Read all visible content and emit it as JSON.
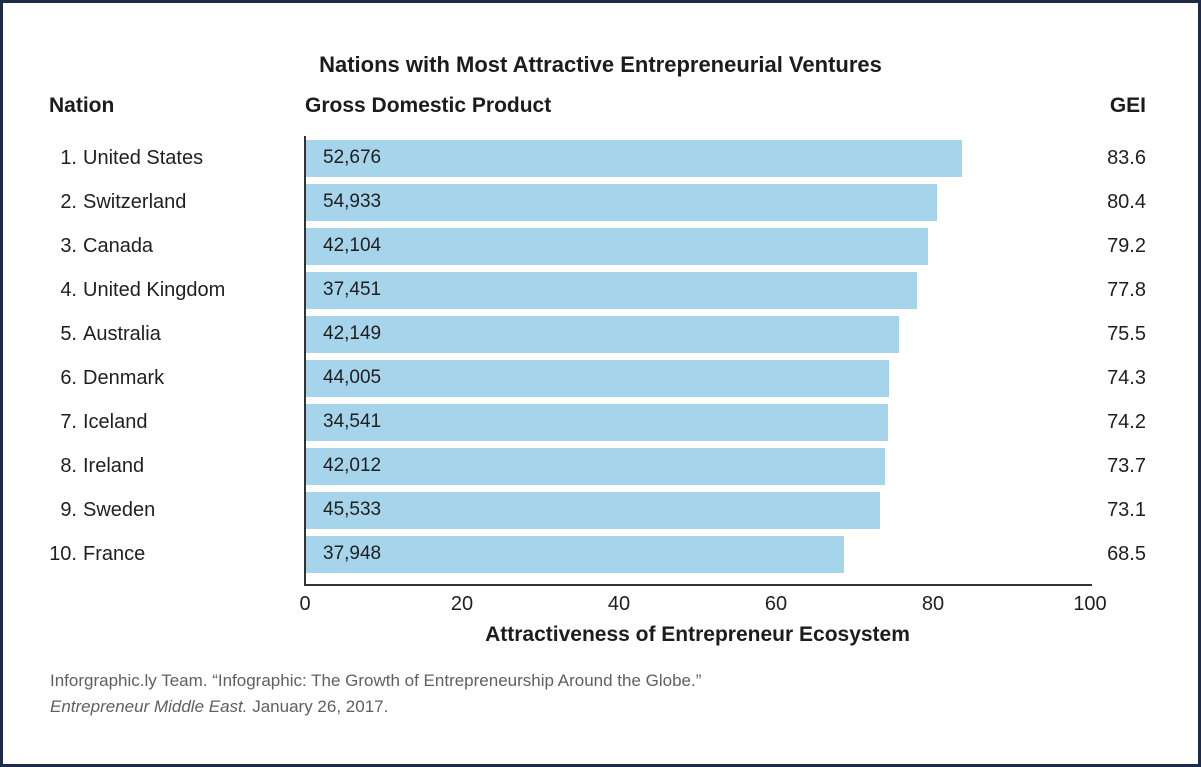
{
  "columns": {
    "nation": "Nation",
    "gdp": "Gross Domestic Product",
    "gei": "GEI"
  },
  "chart_data": {
    "type": "bar",
    "orientation": "horizontal",
    "title": "Nations with Most Attractive Entrepreneurial Ventures",
    "xlabel": "Attractiveness of Entrepreneur Ecosystem",
    "xlim": [
      0,
      100
    ],
    "xticks": [
      "0",
      "20",
      "40",
      "60",
      "80",
      "100"
    ],
    "grid": false,
    "legend_position": "none",
    "bar_color": "#a6d4ea",
    "rows": [
      {
        "rank": "1.",
        "nation": "United States",
        "gdp": "52,676",
        "gei": 83.6
      },
      {
        "rank": "2.",
        "nation": "Switzerland",
        "gdp": "54,933",
        "gei": 80.4
      },
      {
        "rank": "3.",
        "nation": "Canada",
        "gdp": "42,104",
        "gei": 79.2
      },
      {
        "rank": "4.",
        "nation": "United Kingdom",
        "gdp": "37,451",
        "gei": 77.8
      },
      {
        "rank": "5.",
        "nation": "Australia",
        "gdp": "42,149",
        "gei": 75.5
      },
      {
        "rank": "6.",
        "nation": "Denmark",
        "gdp": "44,005",
        "gei": 74.3
      },
      {
        "rank": "7.",
        "nation": "Iceland",
        "gdp": "34,541",
        "gei": 74.2
      },
      {
        "rank": "8.",
        "nation": "Ireland",
        "gdp": "42,012",
        "gei": 73.7
      },
      {
        "rank": "9.",
        "nation": "Sweden",
        "gdp": "45,533",
        "gei": 73.1
      },
      {
        "rank": "10.",
        "nation": "France",
        "gdp": "37,948",
        "gei": 68.5
      }
    ]
  },
  "source": {
    "line1": "Inforgraphic.ly Team. “Infographic: The Growth of Entrepreneurship Around the Globe.”",
    "line2_italic": "Entrepreneur Middle East.",
    "line2_rest": " January 26, 2017."
  }
}
